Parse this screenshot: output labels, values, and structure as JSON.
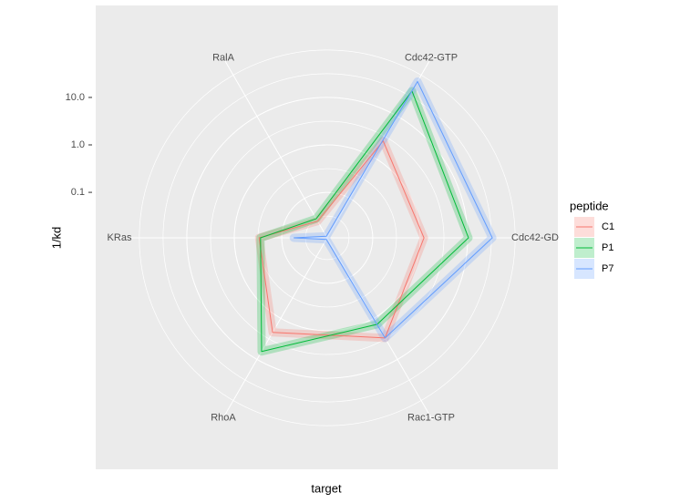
{
  "chart_data": {
    "type": "radar",
    "x_label": "target",
    "y_label": "1/kd",
    "categories": [
      "Cdc42-GTP",
      "Cdc42-GD",
      "Rac1-GTP",
      "RhoA",
      "KRas",
      "RalA"
    ],
    "log_scale": true,
    "ylim": [
      0.011,
      300
    ],
    "yticks": [
      {
        "value": 0.1,
        "label": "0.1"
      },
      {
        "value": 1,
        "label": "1.0"
      },
      {
        "value": 10,
        "label": "10.0"
      }
    ],
    "grid": true,
    "legend_title": "peptide",
    "legend_position": "right",
    "series": [
      {
        "name": "C1",
        "color": "#F8766D",
        "values": [
          2.5,
          1.2,
          3.0,
          2.2,
          0.3,
          0.028
        ]
      },
      {
        "name": "P1",
        "color": "#00BA38",
        "values": [
          41,
          10.4,
          1.4,
          6.4,
          0.28,
          0.032
        ]
      },
      {
        "name": "P7",
        "color": "#619CFF",
        "values": [
          70,
          33,
          3.0,
          0.012,
          0.056,
          0.012
        ]
      }
    ]
  }
}
